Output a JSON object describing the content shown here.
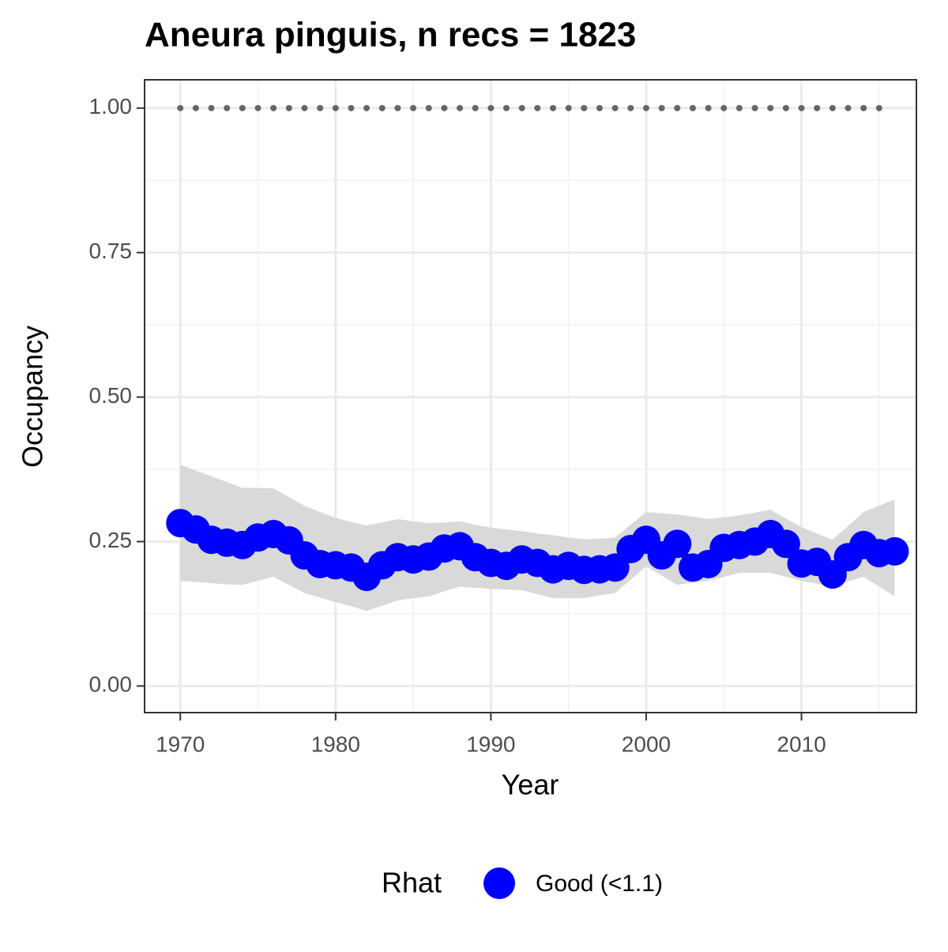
{
  "chart_data": {
    "type": "line",
    "title": "Aneura pinguis, n recs = 1823",
    "x_label": "Year",
    "y_label": "Occupancy",
    "legend_title": "Rhat",
    "x": [
      1970,
      1971,
      1972,
      1973,
      1974,
      1975,
      1976,
      1977,
      1978,
      1979,
      1980,
      1981,
      1982,
      1983,
      1984,
      1985,
      1986,
      1987,
      1988,
      1989,
      1990,
      1991,
      1992,
      1993,
      1994,
      1995,
      1996,
      1997,
      1998,
      1999,
      2000,
      2001,
      2002,
      2003,
      2004,
      2005,
      2006,
      2007,
      2008,
      2009,
      2010,
      2011,
      2012,
      2013,
      2014,
      2015,
      2016
    ],
    "series": [
      {
        "name": "Good (<1.1)",
        "color": "#0000ff",
        "values": [
          0.282,
          0.271,
          0.253,
          0.248,
          0.244,
          0.257,
          0.263,
          0.252,
          0.226,
          0.211,
          0.209,
          0.205,
          0.189,
          0.209,
          0.223,
          0.219,
          0.224,
          0.238,
          0.242,
          0.223,
          0.213,
          0.208,
          0.219,
          0.213,
          0.202,
          0.208,
          0.201,
          0.202,
          0.205,
          0.237,
          0.253,
          0.226,
          0.246,
          0.205,
          0.211,
          0.239,
          0.244,
          0.25,
          0.263,
          0.246,
          0.212,
          0.215,
          0.193,
          0.223,
          0.244,
          0.23,
          0.233
        ]
      }
    ],
    "band": {
      "color": "#d9d9d9",
      "upper": [
        0.383,
        0.373,
        0.363,
        0.353,
        0.343,
        0.343,
        0.342,
        0.327,
        0.312,
        0.301,
        0.291,
        0.284,
        0.278,
        0.283,
        0.289,
        0.285,
        0.282,
        0.283,
        0.285,
        0.279,
        0.274,
        0.271,
        0.268,
        0.264,
        0.261,
        0.257,
        0.254,
        0.255,
        0.257,
        0.279,
        0.301,
        0.299,
        0.297,
        0.293,
        0.289,
        0.292,
        0.295,
        0.3,
        0.305,
        0.29,
        0.275,
        0.264,
        0.253,
        0.277,
        0.301,
        0.312,
        0.323
      ],
      "lower": [
        0.182,
        0.18,
        0.178,
        0.176,
        0.175,
        0.182,
        0.189,
        0.175,
        0.161,
        0.153,
        0.145,
        0.138,
        0.13,
        0.139,
        0.148,
        0.152,
        0.155,
        0.164,
        0.172,
        0.17,
        0.168,
        0.167,
        0.166,
        0.159,
        0.152,
        0.152,
        0.152,
        0.157,
        0.161,
        0.184,
        0.207,
        0.191,
        0.175,
        0.179,
        0.182,
        0.189,
        0.196,
        0.196,
        0.196,
        0.189,
        0.182,
        0.177,
        0.172,
        0.181,
        0.189,
        0.172,
        0.155
      ]
    },
    "reference": {
      "value": 1,
      "from": 1970,
      "to": 2015,
      "color": "#666666"
    },
    "xlim": [
      1967.7,
      2017.4
    ],
    "ylim": [
      -0.046,
      1.049
    ],
    "xticks": [
      1970,
      1980,
      1990,
      2000,
      2010
    ],
    "yticks": [
      {
        "value": 0,
        "label": "0.00"
      },
      {
        "value": 0.25,
        "label": "0.25"
      },
      {
        "value": 0.5,
        "label": "0.50"
      },
      {
        "value": 0.75,
        "label": "0.75"
      },
      {
        "value": 1,
        "label": "1.00"
      }
    ],
    "grid": true,
    "legend": "bottom"
  }
}
